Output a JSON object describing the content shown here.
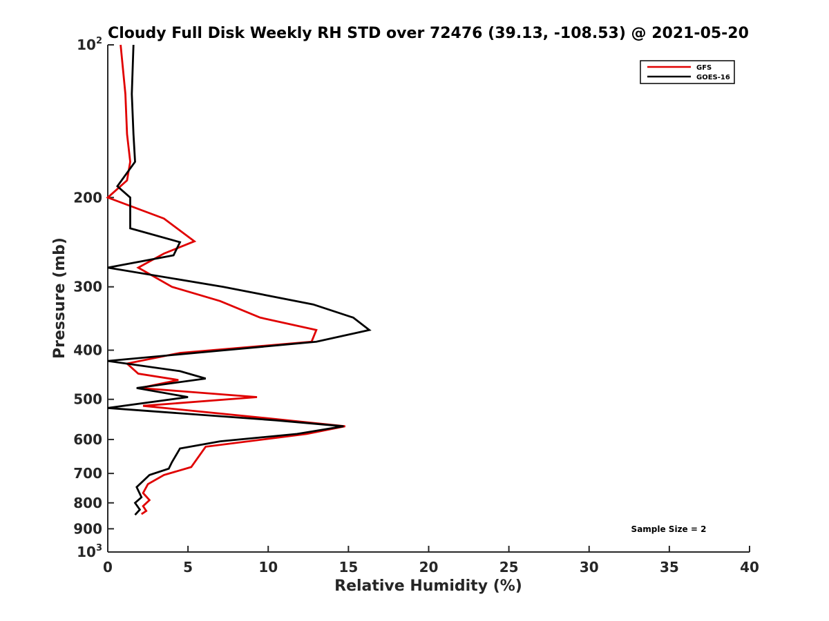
{
  "chart_data": {
    "type": "line",
    "title": "Cloudy Full Disk Weekly RH STD over 72476 (39.13, -108.53) @ 2021-05-20",
    "xlabel": "Relative Humidity (%)",
    "ylabel": "Pressure (mb)",
    "xlim": [
      0,
      40
    ],
    "ylim": [
      100,
      1000
    ],
    "y_scale": "log",
    "y_reversed": true,
    "grid": false,
    "legend_position": "top-right",
    "x_ticks": [
      "0",
      "5",
      "10",
      "15",
      "20",
      "25",
      "30",
      "35",
      "40"
    ],
    "y_ticks": [
      {
        "value": 100,
        "label": "10",
        "sup": "2"
      },
      {
        "value": 200,
        "label": "200",
        "sup": ""
      },
      {
        "value": 300,
        "label": "300",
        "sup": ""
      },
      {
        "value": 400,
        "label": "400",
        "sup": ""
      },
      {
        "value": 500,
        "label": "500",
        "sup": ""
      },
      {
        "value": 600,
        "label": "600",
        "sup": ""
      },
      {
        "value": 700,
        "label": "700",
        "sup": ""
      },
      {
        "value": 800,
        "label": "800",
        "sup": ""
      },
      {
        "value": 900,
        "label": "900",
        "sup": ""
      },
      {
        "value": 1000,
        "label": "10",
        "sup": "3"
      }
    ],
    "annotation": "Sample Size = 2",
    "series": [
      {
        "name": "GFS",
        "color": "#e00000",
        "points": [
          [
            0.8,
            100
          ],
          [
            1.1,
            125
          ],
          [
            1.2,
            150
          ],
          [
            1.4,
            170
          ],
          [
            1.2,
            185
          ],
          [
            0.0,
            200
          ],
          [
            3.5,
            220
          ],
          [
            5.4,
            244
          ],
          [
            3.5,
            258
          ],
          [
            1.9,
            275
          ],
          [
            4.0,
            300
          ],
          [
            7.0,
            320
          ],
          [
            9.5,
            345
          ],
          [
            13.0,
            365
          ],
          [
            12.7,
            385
          ],
          [
            4.5,
            405
          ],
          [
            1.2,
            425
          ],
          [
            1.9,
            445
          ],
          [
            4.4,
            458
          ],
          [
            2.0,
            475
          ],
          [
            9.3,
            495
          ],
          [
            2.2,
            515
          ],
          [
            10.0,
            545
          ],
          [
            14.8,
            565
          ],
          [
            12.4,
            585
          ],
          [
            6.1,
            620
          ],
          [
            5.2,
            680
          ],
          [
            3.5,
            705
          ],
          [
            2.5,
            735
          ],
          [
            2.2,
            765
          ],
          [
            2.6,
            790
          ],
          [
            2.2,
            812
          ],
          [
            2.4,
            830
          ],
          [
            2.1,
            842
          ]
        ]
      },
      {
        "name": "GOES-16",
        "color": "#000000",
        "points": [
          [
            1.6,
            100
          ],
          [
            1.5,
            125
          ],
          [
            1.6,
            150
          ],
          [
            1.7,
            170
          ],
          [
            0.6,
            190
          ],
          [
            1.4,
            200
          ],
          [
            1.4,
            230
          ],
          [
            4.5,
            245
          ],
          [
            4.1,
            260
          ],
          [
            0.0,
            275
          ],
          [
            7.2,
            300
          ],
          [
            12.8,
            325
          ],
          [
            15.3,
            345
          ],
          [
            16.3,
            365
          ],
          [
            13.0,
            385
          ],
          [
            0.0,
            420
          ],
          [
            4.5,
            440
          ],
          [
            6.1,
            455
          ],
          [
            1.8,
            475
          ],
          [
            5.0,
            495
          ],
          [
            0.0,
            520
          ],
          [
            10.5,
            550
          ],
          [
            14.7,
            565
          ],
          [
            11.8,
            585
          ],
          [
            7.0,
            605
          ],
          [
            4.5,
            625
          ],
          [
            4.0,
            665
          ],
          [
            3.8,
            685
          ],
          [
            2.6,
            705
          ],
          [
            1.8,
            745
          ],
          [
            2.1,
            780
          ],
          [
            1.7,
            800
          ],
          [
            2.0,
            825
          ],
          [
            1.7,
            845
          ]
        ]
      }
    ]
  }
}
